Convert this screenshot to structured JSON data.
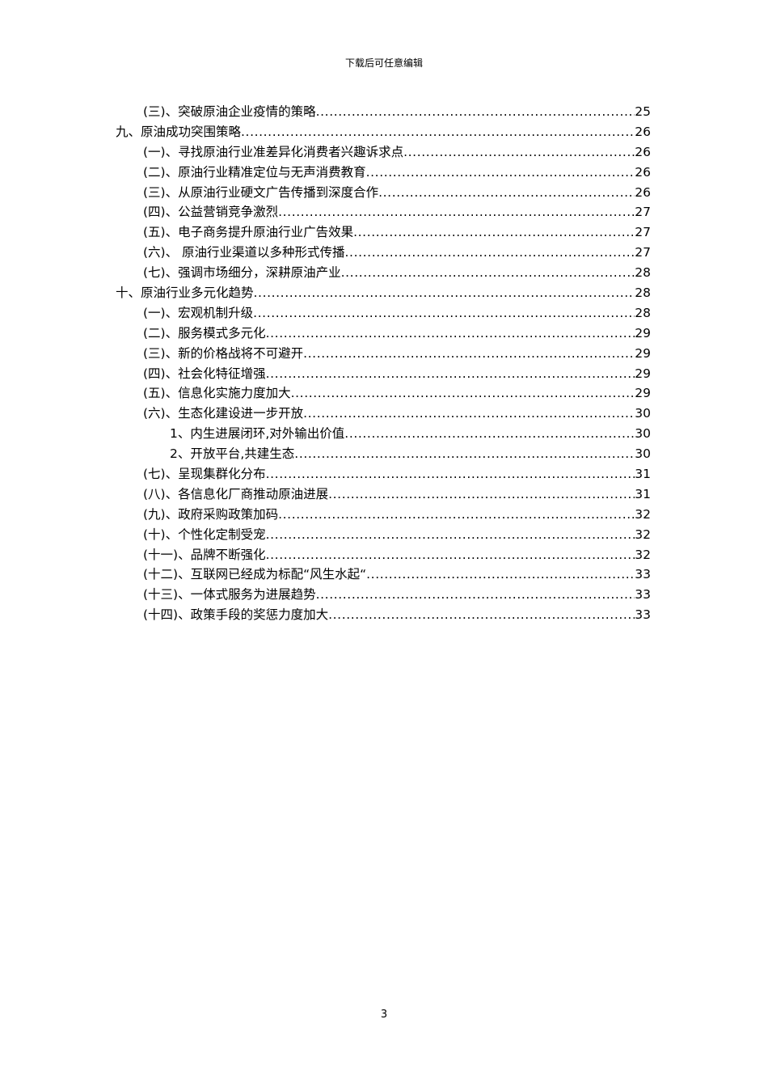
{
  "header": "下载后可任意编辑",
  "toc": [
    {
      "level": 1,
      "title": "(三)、突破原油企业疫情的策略",
      "page": "25"
    },
    {
      "level": 0,
      "title": "九、原油成功突围策略",
      "page": "26"
    },
    {
      "level": 1,
      "title": "(一)、寻找原油行业准差异化消费者兴趣诉求点",
      "page": "26"
    },
    {
      "level": 1,
      "title": "(二)、原油行业精准定位与无声消费教育",
      "page": "26"
    },
    {
      "level": 1,
      "title": "(三)、从原油行业硬文广告传播到深度合作",
      "page": "26"
    },
    {
      "level": 1,
      "title": "(四)、公益营销竞争激烈",
      "page": "27"
    },
    {
      "level": 1,
      "title": "(五)、电子商务提升原油行业广告效果",
      "page": "27"
    },
    {
      "level": 1,
      "title": "(六)、 原油行业渠道以多种形式传播",
      "page": "27"
    },
    {
      "level": 1,
      "title": "(七)、强调市场细分，深耕原油产业",
      "page": "28"
    },
    {
      "level": 0,
      "title": "十、原油行业多元化趋势",
      "page": "28"
    },
    {
      "level": 1,
      "title": "(一)、宏观机制升级",
      "page": "28"
    },
    {
      "level": 1,
      "title": "(二)、服务模式多元化",
      "page": "29"
    },
    {
      "level": 1,
      "title": "(三)、新的价格战将不可避开",
      "page": "29"
    },
    {
      "level": 1,
      "title": "(四)、社会化特征增强",
      "page": "29"
    },
    {
      "level": 1,
      "title": "(五)、信息化实施力度加大",
      "page": "29"
    },
    {
      "level": 1,
      "title": "(六)、生态化建设进一步开放",
      "page": "30"
    },
    {
      "level": 2,
      "title": "1、内生进展闭环,对外输出价值",
      "page": "30"
    },
    {
      "level": 2,
      "title": "2、开放平台,共建生态",
      "page": "30"
    },
    {
      "level": 1,
      "title": "(七)、呈现集群化分布",
      "page": "31"
    },
    {
      "level": 1,
      "title": "(八)、各信息化厂商推动原油进展",
      "page": "31"
    },
    {
      "level": 1,
      "title": "(九)、政府采购政策加码",
      "page": "32"
    },
    {
      "level": 1,
      "title": "(十)、个性化定制受宠",
      "page": "32"
    },
    {
      "level": 1,
      "title": "(十一)、品牌不断强化",
      "page": "32"
    },
    {
      "level": 1,
      "title": "(十二)、互联网已经成为标配“风生水起“",
      "page": "33"
    },
    {
      "level": 1,
      "title": "(十三)、一体式服务为进展趋势",
      "page": "33"
    },
    {
      "level": 1,
      "title": "(十四)、政策手段的奖惩力度加大",
      "page": "33"
    }
  ],
  "page_number": "3"
}
